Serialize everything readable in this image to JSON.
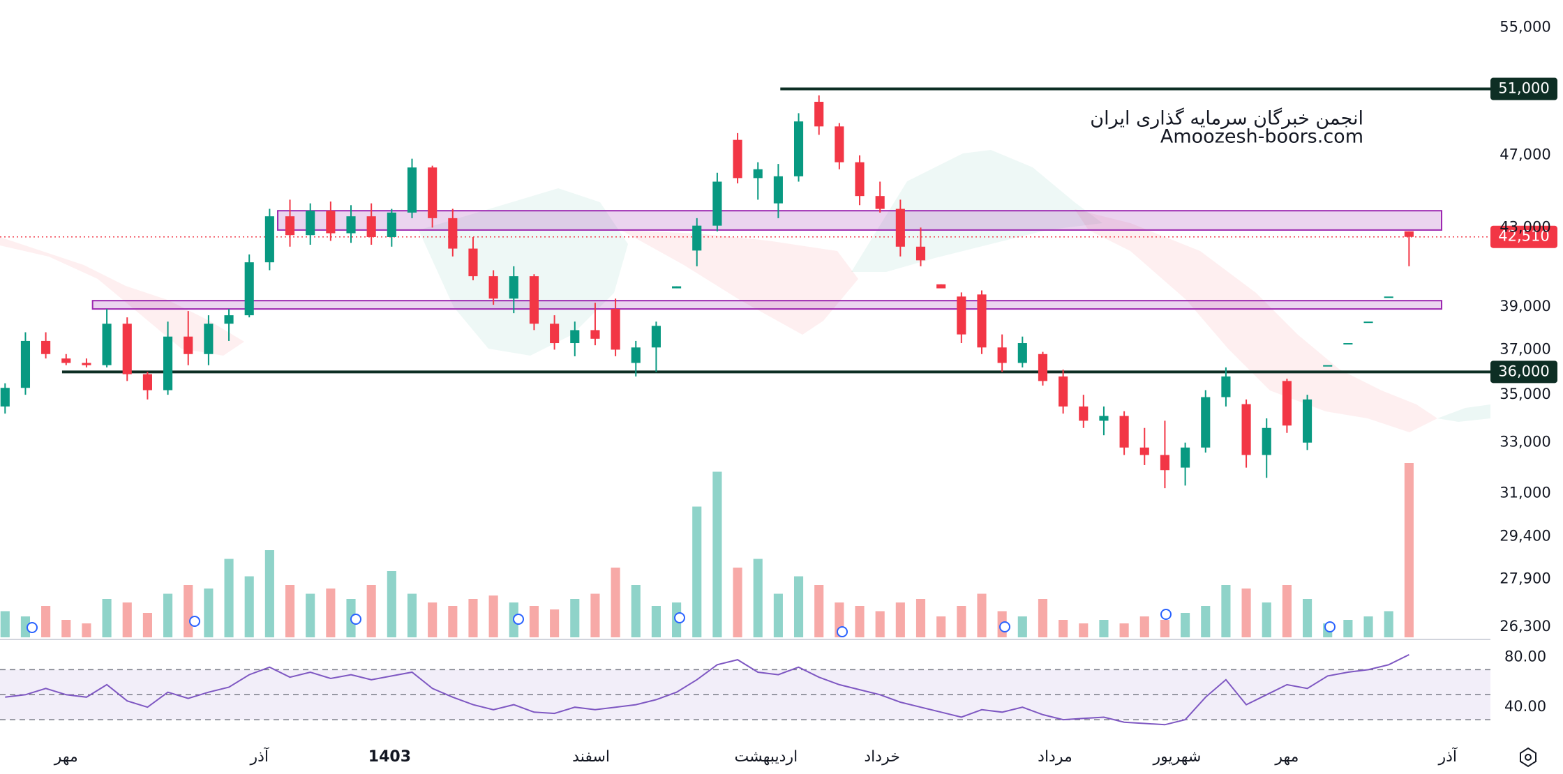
{
  "chart_data": {
    "type": "candlestick",
    "watermark": [
      "انجمن خبرگان سرمایه گذاری ایران",
      "Amoozesh-boors.com"
    ],
    "log_scale": true,
    "xlim": [
      -0.25,
      73
    ],
    "xticks": [
      {
        "value": 3,
        "label": "مهر"
      },
      {
        "value": 12.5,
        "label": "آذر"
      },
      {
        "value": 18.9,
        "label": "1403"
      },
      {
        "value": 28.8,
        "label": "اسفند"
      },
      {
        "value": 37.4,
        "label": "اردیبهشت"
      },
      {
        "value": 43.1,
        "label": "خرداد"
      },
      {
        "value": 51.6,
        "label": "مرداد"
      },
      {
        "value": 57.6,
        "label": "شهریور"
      },
      {
        "value": 63,
        "label": "مهر"
      },
      {
        "value": 70.9,
        "label": "آذر"
      }
    ],
    "ylim": [
      25900,
      56900
    ],
    "yticks": [
      {
        "value": 55000,
        "label": "55,000"
      },
      {
        "value": 47000,
        "label": "47,000"
      },
      {
        "value": 43000,
        "label": "43,000"
      },
      {
        "value": 39000,
        "label": "39,000"
      },
      {
        "value": 37000,
        "label": "37,000"
      },
      {
        "value": 35000,
        "label": "35,000"
      },
      {
        "value": 33000,
        "label": "33,000"
      },
      {
        "value": 31000,
        "label": "31,000"
      },
      {
        "value": 29400,
        "label": "29,400"
      },
      {
        "value": 27900,
        "label": "27,900"
      },
      {
        "value": 26300,
        "label": "26,300"
      }
    ],
    "up_color": "#089981",
    "down_color": "#f23645",
    "volume_up_color": "#8fd3c9",
    "volume_down_color": "#f7a9a7",
    "open": [
      34500,
      35300,
      37400,
      36600,
      36400,
      36300,
      38200,
      35900,
      35200,
      37600,
      36800,
      38200,
      38600,
      41200,
      43600,
      42600,
      43900,
      42700,
      43600,
      42500,
      43800,
      46300,
      43500,
      41900,
      40500,
      39400,
      40500,
      38200,
      37300,
      37900,
      38900,
      36400,
      37100,
      39900,
      41800,
      43100,
      47900,
      45700,
      44300,
      45800,
      50200,
      48700,
      46600,
      44700,
      44000,
      42000,
      40100,
      39500,
      39600,
      37100,
      36400,
      36800,
      35800,
      34500,
      33900,
      34100,
      32800,
      32500,
      32000,
      32800,
      34900,
      34600,
      32500,
      35600,
      33000,
      36300,
      37300,
      38300,
      39500,
      42800
    ],
    "high": [
      35500,
      37800,
      37800,
      36800,
      36600,
      38900,
      38500,
      36000,
      38300,
      38800,
      38600,
      38900,
      41600,
      44000,
      44500,
      44300,
      44400,
      44200,
      44300,
      44000,
      46800,
      46400,
      44000,
      42500,
      40800,
      41000,
      40600,
      38600,
      38300,
      39200,
      39400,
      37400,
      38300,
      40000,
      43500,
      46000,
      48300,
      46600,
      46500,
      49500,
      50600,
      48900,
      47000,
      45500,
      44500,
      43000,
      40100,
      39700,
      39800,
      37700,
      37600,
      36900,
      36100,
      35000,
      34500,
      34300,
      33600,
      33900,
      33000,
      35200,
      36200,
      34800,
      34000,
      35700,
      35000,
      36300,
      37300,
      38300,
      39500,
      42800
    ],
    "low": [
      34200,
      35000,
      36600,
      36300,
      36200,
      36200,
      35600,
      34800,
      35000,
      36300,
      36300,
      37400,
      38500,
      40800,
      42000,
      42100,
      42300,
      42200,
      42100,
      42000,
      43500,
      43000,
      41500,
      40300,
      39100,
      38700,
      37900,
      37000,
      36700,
      37200,
      36700,
      35800,
      36000,
      39900,
      41000,
      42800,
      45400,
      44500,
      43500,
      45500,
      48200,
      46200,
      44200,
      43800,
      41500,
      41000,
      39900,
      37300,
      36800,
      36000,
      36200,
      35400,
      34200,
      33600,
      33300,
      32500,
      32100,
      31200,
      31300,
      32600,
      34500,
      32000,
      31600,
      33400,
      32700,
      36300,
      37300,
      38300,
      39500,
      41000
    ],
    "close": [
      35300,
      37400,
      36800,
      36400,
      36300,
      38200,
      35900,
      35200,
      37600,
      36800,
      38200,
      38600,
      41200,
      43600,
      42600,
      43900,
      42700,
      43600,
      42500,
      43800,
      46300,
      43500,
      41900,
      40500,
      39400,
      40500,
      38200,
      37300,
      37900,
      37500,
      37000,
      37100,
      38100,
      40000,
      43100,
      45500,
      45700,
      46200,
      45800,
      49000,
      48700,
      46600,
      44700,
      44000,
      42000,
      41300,
      39900,
      37700,
      37100,
      36400,
      37300,
      35600,
      34500,
      33900,
      34100,
      32800,
      32500,
      31900,
      32800,
      34900,
      35800,
      32500,
      33600,
      33700,
      34800,
      36300,
      37300,
      38300,
      39500,
      42510
    ],
    "volume": [
      15,
      12,
      18,
      10,
      8,
      22,
      20,
      14,
      25,
      30,
      28,
      45,
      35,
      50,
      30,
      25,
      28,
      22,
      30,
      38,
      25,
      20,
      18,
      22,
      24,
      20,
      18,
      16,
      22,
      25,
      40,
      30,
      18,
      20,
      75,
      95,
      40,
      45,
      25,
      35,
      30,
      20,
      18,
      15,
      20,
      22,
      12,
      18,
      25,
      15,
      12,
      22,
      10,
      8,
      10,
      8,
      12,
      10,
      14,
      18,
      30,
      28,
      20,
      30,
      22,
      8,
      10,
      12,
      15,
      100
    ],
    "levels": [
      {
        "value": 51000,
        "label": "51,000",
        "color": "#0d2e24",
        "from": 38.1
      },
      {
        "value": 36000,
        "label": "36,000",
        "color": "#0d2e24",
        "from": 2.8
      }
    ],
    "zones": [
      {
        "low": 42870,
        "high": 43900,
        "from": 13.4,
        "to": 70.6,
        "color": "#9c27b0"
      },
      {
        "low": 38900,
        "high": 39300,
        "from": 4.3,
        "to": 70.6,
        "color": "#9c27b0"
      }
    ],
    "last_price": {
      "value": 42510,
      "label": "42,510",
      "color": "#f23645"
    },
    "rsi": {
      "color": "#7e57c2",
      "ylim": [
        20,
        92
      ],
      "yticks": [
        {
          "value": 80,
          "label": "80.00"
        },
        {
          "value": 40,
          "label": "40.00"
        }
      ],
      "band": [
        30,
        70
      ],
      "midline": 50,
      "values": [
        48,
        50,
        55,
        50,
        48,
        58,
        45,
        40,
        52,
        47,
        52,
        56,
        66,
        72,
        64,
        68,
        63,
        66,
        62,
        65,
        68,
        55,
        48,
        42,
        38,
        42,
        36,
        35,
        40,
        38,
        40,
        42,
        46,
        52,
        62,
        74,
        78,
        68,
        66,
        72,
        64,
        58,
        54,
        50,
        44,
        40,
        36,
        32,
        38,
        36,
        40,
        34,
        30,
        31,
        32,
        28,
        27,
        26,
        30,
        48,
        62,
        42,
        50,
        58,
        55,
        65,
        68,
        70,
        74,
        82
      ]
    }
  }
}
